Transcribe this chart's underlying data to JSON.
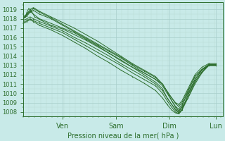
{
  "bg_color": "#c8eae8",
  "grid_color": "#a8ceca",
  "minor_grid_color": "#b8d8d4",
  "line_color": "#2d6e2d",
  "marker_color": "#2d6e2d",
  "ylim": [
    1007.5,
    1019.8
  ],
  "yticks": [
    1008,
    1009,
    1010,
    1011,
    1012,
    1013,
    1014,
    1015,
    1016,
    1017,
    1018,
    1019
  ],
  "xlabel": "Pression niveau de la mer( hPa )",
  "xlabel_color": "#2d6e2d",
  "day_labels": [
    "Ven",
    "Sam",
    "Dim",
    "Lun"
  ],
  "day_positions": [
    0.85,
    2.0,
    3.15,
    4.15
  ],
  "xlim": [
    0.0,
    4.3
  ],
  "lines": [
    [
      0.0,
      1018.0,
      0.05,
      1018.2,
      0.08,
      1018.7,
      0.12,
      1019.1,
      0.18,
      1018.8,
      0.25,
      1018.2,
      0.4,
      1017.8,
      0.6,
      1017.3,
      0.85,
      1016.9,
      1.1,
      1016.3,
      1.35,
      1015.7,
      1.6,
      1015.0,
      1.85,
      1014.3,
      2.1,
      1013.5,
      2.35,
      1012.8,
      2.6,
      1012.2,
      2.85,
      1011.5,
      3.0,
      1011.0,
      3.1,
      1010.2,
      3.2,
      1009.2,
      3.28,
      1008.5,
      3.35,
      1008.1,
      3.42,
      1008.6,
      3.55,
      1010.2,
      3.7,
      1011.8,
      3.85,
      1012.5,
      4.0,
      1013.0,
      4.15,
      1013.0
    ],
    [
      0.0,
      1018.0,
      0.08,
      1018.5,
      0.15,
      1018.8,
      0.22,
      1018.5,
      0.35,
      1018.0,
      0.6,
      1017.5,
      0.85,
      1017.0,
      1.1,
      1016.5,
      1.35,
      1015.8,
      1.6,
      1015.1,
      1.85,
      1014.3,
      2.1,
      1013.6,
      2.35,
      1012.8,
      2.6,
      1012.0,
      2.85,
      1011.2,
      3.0,
      1010.5,
      3.1,
      1009.5,
      3.2,
      1008.8,
      3.28,
      1008.2,
      3.35,
      1007.9,
      3.42,
      1008.3,
      3.55,
      1009.8,
      3.7,
      1011.5,
      3.85,
      1012.5,
      4.0,
      1013.0,
      4.15,
      1013.0
    ],
    [
      0.0,
      1017.8,
      0.08,
      1018.0,
      0.15,
      1018.2,
      0.22,
      1018.0,
      0.35,
      1017.7,
      0.6,
      1017.2,
      0.85,
      1016.7,
      1.1,
      1016.0,
      1.35,
      1015.4,
      1.6,
      1014.7,
      1.85,
      1014.0,
      2.1,
      1013.2,
      2.35,
      1012.5,
      2.6,
      1011.8,
      2.85,
      1011.0,
      3.0,
      1010.3,
      3.1,
      1009.5,
      3.2,
      1008.8,
      3.28,
      1008.3,
      3.35,
      1008.0,
      3.42,
      1008.5,
      3.55,
      1009.5,
      3.7,
      1011.2,
      3.85,
      1012.3,
      4.0,
      1013.0,
      4.15,
      1013.0
    ],
    [
      0.0,
      1018.2,
      0.08,
      1018.5,
      0.15,
      1019.0,
      0.22,
      1019.2,
      0.35,
      1018.8,
      0.6,
      1018.2,
      0.85,
      1017.6,
      1.1,
      1017.0,
      1.35,
      1016.3,
      1.6,
      1015.6,
      1.85,
      1014.8,
      2.1,
      1014.0,
      2.35,
      1013.2,
      2.6,
      1012.5,
      2.85,
      1011.8,
      3.0,
      1011.0,
      3.1,
      1010.2,
      3.2,
      1009.5,
      3.28,
      1009.0,
      3.35,
      1008.8,
      3.42,
      1009.2,
      3.55,
      1010.5,
      3.7,
      1012.0,
      3.85,
      1012.8,
      4.0,
      1013.2,
      4.15,
      1013.2
    ],
    [
      0.0,
      1017.5,
      0.08,
      1017.7,
      0.15,
      1017.9,
      0.22,
      1017.7,
      0.35,
      1017.3,
      0.6,
      1016.8,
      0.85,
      1016.2,
      1.1,
      1015.5,
      1.35,
      1014.8,
      1.6,
      1014.0,
      1.85,
      1013.3,
      2.1,
      1012.5,
      2.35,
      1011.8,
      2.6,
      1011.1,
      2.85,
      1010.3,
      3.0,
      1009.5,
      3.1,
      1008.8,
      3.2,
      1008.2,
      3.28,
      1007.9,
      3.35,
      1007.8,
      3.42,
      1008.2,
      3.55,
      1009.5,
      3.7,
      1011.0,
      3.85,
      1012.2,
      4.0,
      1013.0,
      4.15,
      1013.0
    ],
    [
      0.0,
      1018.0,
      0.08,
      1018.3,
      0.15,
      1018.7,
      0.22,
      1018.9,
      0.35,
      1018.5,
      0.6,
      1018.0,
      0.85,
      1017.3,
      1.1,
      1016.6,
      1.35,
      1015.9,
      1.6,
      1015.2,
      1.85,
      1014.5,
      2.1,
      1013.8,
      2.35,
      1013.0,
      2.6,
      1012.2,
      2.85,
      1011.5,
      3.0,
      1010.8,
      3.1,
      1010.0,
      3.2,
      1009.2,
      3.28,
      1008.6,
      3.35,
      1008.3,
      3.42,
      1008.8,
      3.55,
      1010.0,
      3.7,
      1011.5,
      3.85,
      1012.5,
      4.0,
      1013.1,
      4.15,
      1013.1
    ],
    [
      0.0,
      1017.6,
      0.08,
      1017.8,
      0.15,
      1018.0,
      0.22,
      1017.8,
      0.35,
      1017.5,
      0.6,
      1017.0,
      0.85,
      1016.5,
      1.1,
      1015.8,
      1.35,
      1015.1,
      1.6,
      1014.4,
      1.85,
      1013.7,
      2.1,
      1013.0,
      2.35,
      1012.2,
      2.6,
      1011.5,
      2.85,
      1010.8,
      3.0,
      1010.0,
      3.1,
      1009.2,
      3.2,
      1008.5,
      3.28,
      1008.0,
      3.35,
      1007.8,
      3.42,
      1008.2,
      3.55,
      1009.8,
      3.7,
      1011.3,
      3.85,
      1012.3,
      4.0,
      1013.0,
      4.15,
      1013.0
    ],
    [
      0.0,
      1018.1,
      0.08,
      1018.4,
      0.15,
      1018.8,
      0.22,
      1019.1,
      0.35,
      1018.7,
      0.6,
      1018.1,
      0.85,
      1017.4,
      1.1,
      1016.7,
      1.35,
      1016.0,
      1.6,
      1015.3,
      1.85,
      1014.6,
      2.1,
      1013.9,
      2.35,
      1013.1,
      2.6,
      1012.4,
      2.85,
      1011.7,
      3.0,
      1011.0,
      3.1,
      1010.2,
      3.2,
      1009.5,
      3.28,
      1008.9,
      3.35,
      1008.6,
      3.42,
      1009.0,
      3.55,
      1010.3,
      3.7,
      1011.8,
      3.85,
      1012.6,
      4.0,
      1013.1,
      4.15,
      1013.1
    ]
  ]
}
